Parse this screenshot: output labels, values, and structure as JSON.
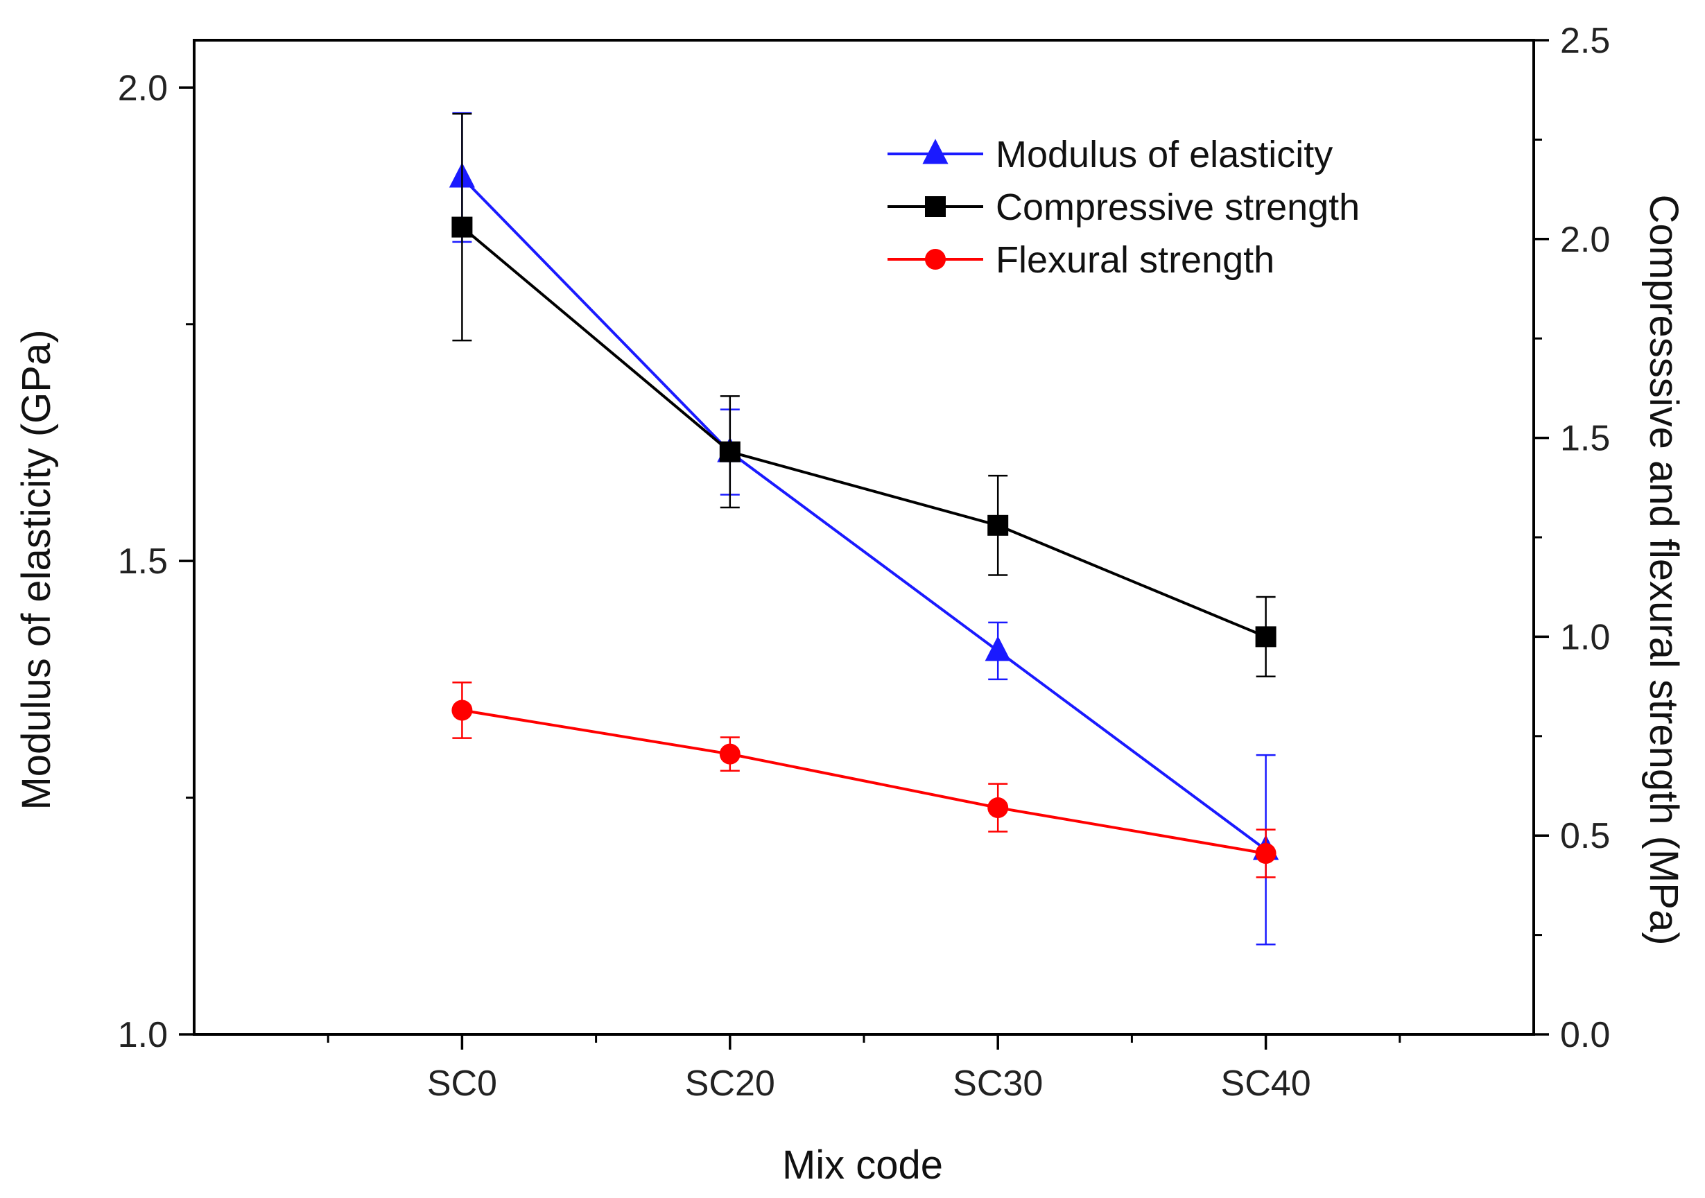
{
  "chart_data": {
    "type": "line",
    "title": "",
    "xlabel": "Mix code",
    "ylabel_left": "Modulus of elasticity (GPa)",
    "ylabel_right": "Compresssive and flexural strength (MPa)",
    "categories": [
      "SC0",
      "SC20",
      "SC30",
      "SC40"
    ],
    "ylim_left": [
      1.0,
      2.05
    ],
    "ylim_right": [
      0.0,
      2.5
    ],
    "yticks_left": [
      "1.0",
      "1.5",
      "2.0"
    ],
    "yticks_right": [
      "0.0",
      "0.5",
      "1.0",
      "1.5",
      "2.0",
      "2.5"
    ],
    "legend_position": "top-right",
    "series": [
      {
        "name": "Modulus of elasticity",
        "axis": "left",
        "color": "#1a1aff",
        "marker": "triangle",
        "values": [
          1.905,
          1.615,
          1.405,
          1.195
        ],
        "errors": [
          0.068,
          0.045,
          0.03,
          0.1
        ]
      },
      {
        "name": "Compressive strength",
        "axis": "right",
        "color": "#000000",
        "marker": "square",
        "values": [
          2.03,
          1.465,
          1.28,
          1.0
        ],
        "errors": [
          0.285,
          0.14,
          0.125,
          0.1
        ]
      },
      {
        "name": "Flexural strength",
        "axis": "right",
        "color": "#ff0000",
        "marker": "circle",
        "values": [
          0.815,
          0.705,
          0.57,
          0.455
        ],
        "errors": [
          0.07,
          0.042,
          0.06,
          0.06
        ]
      }
    ]
  }
}
